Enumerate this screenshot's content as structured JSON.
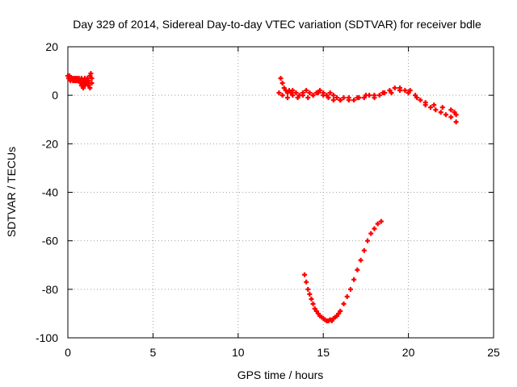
{
  "chart_data": {
    "type": "scatter",
    "title": "Day 329 of 2014, Sidereal Day-to-day VTEC variation (SDTVAR) for receiver bdle",
    "xlabel": "GPS time / hours",
    "ylabel": "SDTVAR / TECUs",
    "xlim": [
      0,
      25
    ],
    "ylim": [
      -100,
      20
    ],
    "xticks": [
      0,
      5,
      10,
      15,
      20,
      25
    ],
    "yticks": [
      -100,
      -80,
      -60,
      -40,
      -20,
      0,
      20
    ],
    "xtick_labels": [
      "0",
      "5",
      "10",
      "15",
      "20",
      "25"
    ],
    "ytick_labels": [
      "-100",
      "-80",
      "-60",
      "-40",
      "-20",
      "0",
      "20"
    ],
    "grid": true,
    "marker": "plus",
    "series": [
      {
        "name": "SDTVAR segment 1",
        "color": "#ff0000",
        "x": [
          0.0,
          0.05,
          0.1,
          0.15,
          0.2,
          0.25,
          0.3,
          0.35,
          0.4,
          0.45,
          0.5,
          0.55,
          0.6,
          0.65,
          0.7,
          0.75,
          0.8,
          0.85,
          0.9,
          0.95,
          1.0,
          1.05,
          1.1,
          1.15,
          1.2,
          1.25,
          1.3,
          1.35,
          1.4,
          0.8,
          0.9,
          1.0,
          1.1,
          1.2,
          1.3,
          1.4
        ],
        "y": [
          8,
          7,
          8,
          6,
          7,
          7,
          6,
          7,
          6,
          7,
          6,
          7,
          6,
          7,
          6,
          5,
          7,
          6,
          5,
          6,
          7,
          5,
          6,
          7,
          6,
          5,
          8,
          9,
          7,
          4,
          3,
          4,
          5,
          4,
          3,
          5
        ]
      },
      {
        "name": "SDTVAR segment 2",
        "color": "#ff0000",
        "x": [
          12.5,
          12.6,
          12.7,
          12.8,
          12.9,
          13.0,
          13.1,
          13.2,
          13.4,
          13.6,
          13.8,
          14.0,
          14.2,
          14.4,
          14.6,
          14.8,
          15.0,
          15.2,
          15.4,
          15.6,
          15.8,
          16.0,
          16.2,
          16.5,
          16.8,
          17.1,
          17.4,
          17.7,
          18.0,
          18.3,
          18.6,
          18.9,
          19.2,
          19.5,
          19.8,
          20.1,
          20.4,
          20.7,
          21.0,
          21.3,
          21.6,
          21.9,
          22.2,
          22.5,
          22.8,
          12.4,
          12.6,
          12.9,
          13.2,
          13.5,
          13.8,
          14.1,
          14.4,
          14.7,
          15.0,
          15.3,
          15.6,
          16.0,
          16.5,
          17.0,
          17.5,
          18.0,
          18.5,
          19.0,
          19.5,
          20.0,
          20.5,
          21.0,
          21.5,
          22.0,
          22.5,
          22.8,
          22.7
        ],
        "y": [
          7,
          5,
          3,
          2,
          1,
          2,
          1,
          2,
          1,
          0,
          1,
          2,
          1,
          0,
          1,
          2,
          1,
          0,
          1,
          0,
          -1,
          -2,
          -1,
          -1,
          -2,
          -1,
          -1,
          0,
          0,
          0,
          1,
          2,
          3,
          3,
          2,
          2,
          0,
          -2,
          -4,
          -5,
          -6,
          -7,
          -8,
          -9,
          -11,
          1,
          0,
          -1,
          0,
          -1,
          0,
          -1,
          0,
          1,
          0,
          -1,
          -2,
          -2,
          -2,
          -1,
          0,
          -1,
          1,
          1,
          2,
          1,
          -1,
          -3,
          -4,
          -5,
          -6,
          -8,
          -7
        ]
      },
      {
        "name": "SDTVAR segment 3",
        "color": "#ff0000",
        "x": [
          13.9,
          14.0,
          14.1,
          14.2,
          14.3,
          14.4,
          14.5,
          14.6,
          14.7,
          14.8,
          14.9,
          15.0,
          15.1,
          15.2,
          15.3,
          15.4,
          15.5,
          15.6,
          15.7,
          15.8,
          15.9,
          16.0,
          16.2,
          16.4,
          16.6,
          16.8,
          17.0,
          17.2,
          17.4,
          17.6,
          17.8,
          18.0,
          18.2,
          18.4
        ],
        "y": [
          -74,
          -77,
          -80,
          -82,
          -84,
          -86,
          -88,
          -89,
          -90,
          -91,
          -91.5,
          -92,
          -92.5,
          -93,
          -93,
          -92.5,
          -93,
          -92,
          -91.5,
          -91,
          -90,
          -89,
          -86,
          -83,
          -80,
          -76,
          -72,
          -68,
          -64,
          -60,
          -57,
          -55,
          -53,
          -52
        ]
      }
    ]
  }
}
